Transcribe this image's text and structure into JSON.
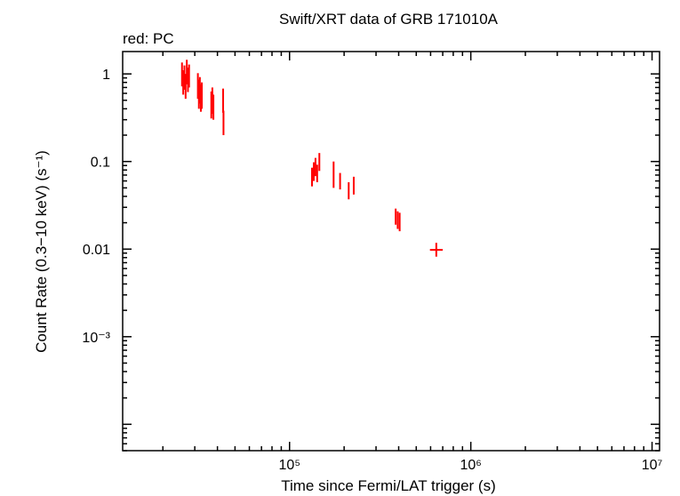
{
  "chart_data": {
    "type": "scatter",
    "title": "Swift/XRT data of GRB 171010A",
    "subtitle": "red: PC",
    "xlabel": "Time since Fermi/LAT trigger (s)",
    "ylabel": "Count Rate (0.3−10 keV) (s⁻¹)",
    "x_scale": "log",
    "y_scale": "log",
    "xlim": [
      12000,
      11000000
    ],
    "ylim": [
      5e-05,
      1.8
    ],
    "x_ticks": [
      {
        "value": 100000,
        "label": "10⁵"
      },
      {
        "value": 1000000,
        "label": "10⁶"
      },
      {
        "value": 10000000,
        "label": "10⁷"
      }
    ],
    "y_ticks": [
      {
        "value": 1,
        "label": "1"
      },
      {
        "value": 0.1,
        "label": "0.1"
      },
      {
        "value": 0.01,
        "label": "0.01"
      },
      {
        "value": 0.001,
        "label": "10⁻³"
      }
    ],
    "grid": false,
    "series": [
      {
        "name": "PC",
        "color": "#ff0000",
        "points": [
          {
            "x": 25500,
            "y": 1.02,
            "ylo": 0.72,
            "yhi": 1.35
          },
          {
            "x": 25900,
            "y": 0.82,
            "ylo": 0.58,
            "yhi": 1.1
          },
          {
            "x": 26300,
            "y": 0.94,
            "ylo": 0.66,
            "yhi": 1.25
          },
          {
            "x": 26700,
            "y": 0.74,
            "ylo": 0.52,
            "yhi": 1.0
          },
          {
            "x": 27100,
            "y": 1.08,
            "ylo": 0.76,
            "yhi": 1.45
          },
          {
            "x": 27500,
            "y": 0.88,
            "ylo": 0.62,
            "yhi": 1.18
          },
          {
            "x": 27900,
            "y": 0.97,
            "ylo": 0.7,
            "yhi": 1.28
          },
          {
            "x": 31200,
            "y": 0.78,
            "ylo": 0.52,
            "yhi": 1.02
          },
          {
            "x": 31600,
            "y": 0.62,
            "ylo": 0.4,
            "yhi": 0.86
          },
          {
            "x": 32000,
            "y": 0.68,
            "ylo": 0.46,
            "yhi": 0.92
          },
          {
            "x": 32400,
            "y": 0.55,
            "ylo": 0.37,
            "yhi": 0.76
          },
          {
            "x": 32800,
            "y": 0.6,
            "ylo": 0.4,
            "yhi": 0.8
          },
          {
            "x": 37000,
            "y": 0.46,
            "ylo": 0.31,
            "yhi": 0.63
          },
          {
            "x": 37500,
            "y": 0.52,
            "ylo": 0.35,
            "yhi": 0.7
          },
          {
            "x": 38000,
            "y": 0.43,
            "ylo": 0.3,
            "yhi": 0.58
          },
          {
            "x": 43000,
            "y": 0.5,
            "ylo": 0.36,
            "yhi": 0.68
          },
          {
            "x": 43200,
            "y": 0.28,
            "ylo": 0.2,
            "yhi": 0.38
          },
          {
            "x": 133000,
            "y": 0.068,
            "ylo": 0.052,
            "yhi": 0.085
          },
          {
            "x": 136000,
            "y": 0.078,
            "ylo": 0.06,
            "yhi": 0.098
          },
          {
            "x": 139000,
            "y": 0.088,
            "ylo": 0.068,
            "yhi": 0.11
          },
          {
            "x": 142000,
            "y": 0.074,
            "ylo": 0.058,
            "yhi": 0.092
          },
          {
            "x": 146000,
            "y": 0.1,
            "ylo": 0.078,
            "yhi": 0.125
          },
          {
            "x": 175000,
            "y": 0.074,
            "ylo": 0.05,
            "yhi": 0.1
          },
          {
            "x": 190000,
            "y": 0.06,
            "ylo": 0.048,
            "yhi": 0.074
          },
          {
            "x": 212000,
            "y": 0.047,
            "ylo": 0.037,
            "yhi": 0.058
          },
          {
            "x": 226000,
            "y": 0.054,
            "ylo": 0.042,
            "yhi": 0.067
          },
          {
            "x": 385000,
            "y": 0.024,
            "ylo": 0.019,
            "yhi": 0.029
          },
          {
            "x": 395000,
            "y": 0.022,
            "ylo": 0.017,
            "yhi": 0.027
          },
          {
            "x": 405000,
            "y": 0.021,
            "ylo": 0.016,
            "yhi": 0.026
          },
          {
            "x": 645000,
            "y": 0.0098,
            "ylo": 0.0082,
            "yhi": 0.0118,
            "xlo": 595000,
            "xhi": 700000
          }
        ]
      }
    ]
  }
}
